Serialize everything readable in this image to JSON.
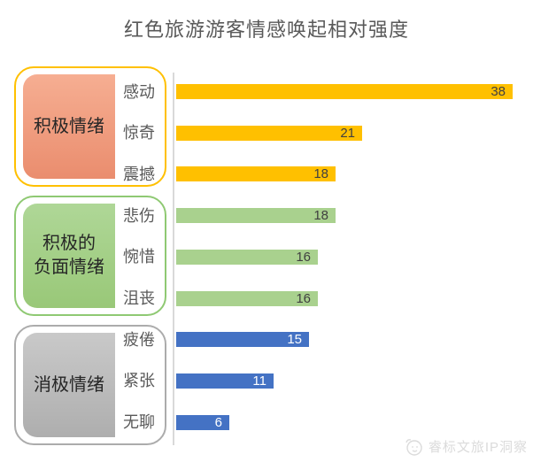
{
  "title": "红色旅游游客情感唤起相对强度",
  "watermark": {
    "text": "睿标文旅IP洞察",
    "logo": "mascot-face"
  },
  "chart_data": {
    "type": "bar",
    "orientation": "horizontal",
    "title": "红色旅游游客情感唤起相对强度",
    "grid": false,
    "x_axis_visible": false,
    "xlim": [
      0,
      40
    ],
    "value_labels_position": "inside-end",
    "categories": [
      "感动",
      "惊奇",
      "震撼",
      "悲伤",
      "惋惜",
      "沮丧",
      "疲倦",
      "紧张",
      "无聊"
    ],
    "values": [
      38,
      21,
      18,
      18,
      16,
      16,
      15,
      11,
      6
    ],
    "axis_line_color": "#D9D9D9",
    "groups": [
      {
        "label": "积极情绪",
        "label_lines": [
          "积极情绪"
        ],
        "items": [
          {
            "category": "感动",
            "value": 38
          },
          {
            "category": "惊奇",
            "value": 21
          },
          {
            "category": "震撼",
            "value": 18
          }
        ],
        "bar_color": "#FFC000",
        "value_label_color": "#404040",
        "box_border_color": "#FFC000",
        "box_fill_gradient": [
          "#F6AE92",
          "#EA8D6E"
        ]
      },
      {
        "label": "积极的负面情绪",
        "label_lines": [
          "积极的",
          "负面情绪"
        ],
        "items": [
          {
            "category": "悲伤",
            "value": 18
          },
          {
            "category": "惋惜",
            "value": 16
          },
          {
            "category": "沮丧",
            "value": 16
          }
        ],
        "bar_color": "#A9D18E",
        "value_label_color": "#404040",
        "box_border_color": "#8FC973",
        "box_fill_gradient": [
          "#AFD797",
          "#99C878"
        ]
      },
      {
        "label": "消极情绪",
        "label_lines": [
          "消极情绪"
        ],
        "items": [
          {
            "category": "疲倦",
            "value": 15
          },
          {
            "category": "紧张",
            "value": 11
          },
          {
            "category": "无聊",
            "value": 6
          }
        ],
        "bar_color": "#4472C4",
        "value_label_color": "#FFFFFF",
        "box_border_color": "#ACACAC",
        "box_fill_gradient": [
          "#C9C9C9",
          "#AEAEAE"
        ]
      }
    ]
  }
}
